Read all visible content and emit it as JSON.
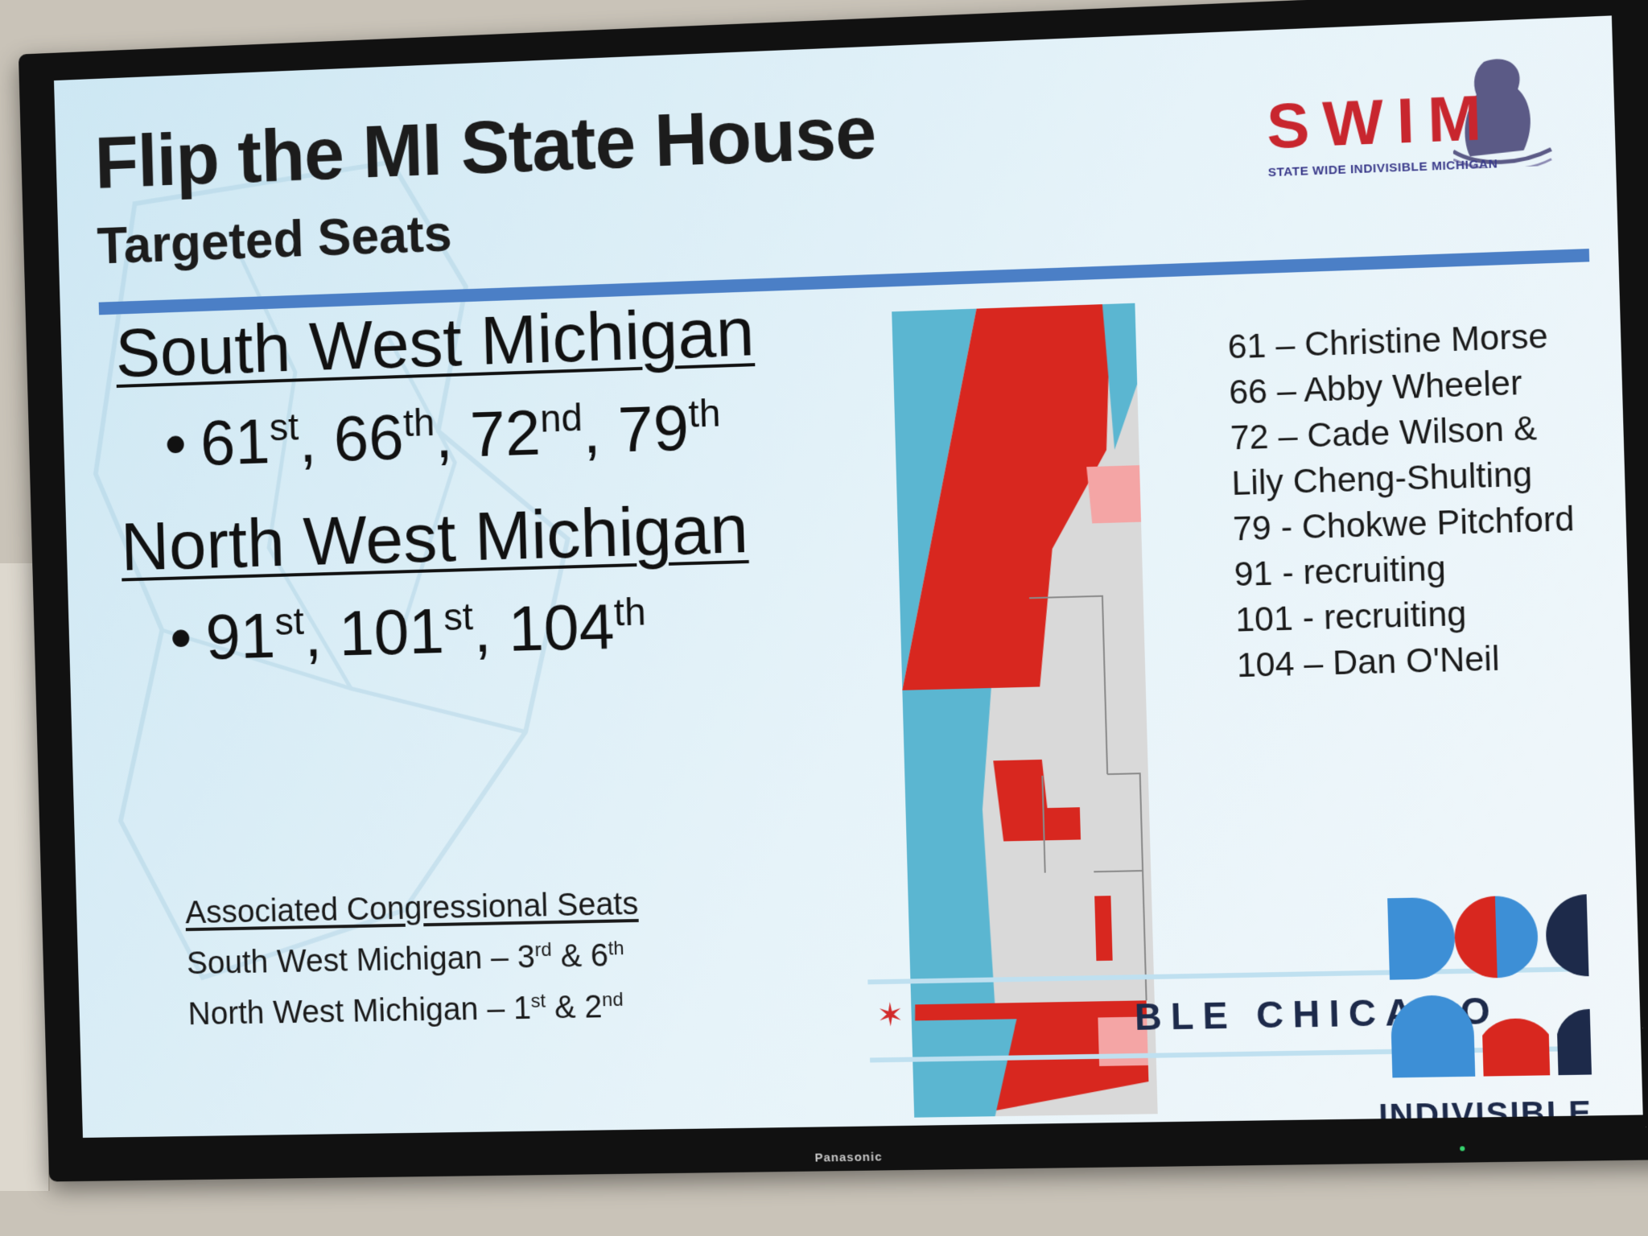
{
  "slide": {
    "title": "Flip the MI State House",
    "subtitle": "Targeted Seats"
  },
  "logo": {
    "word": "SWIM",
    "tagline": "STATE WIDE INDIVISIBLE MICHIGAN"
  },
  "regions": [
    {
      "name": "South West Michigan",
      "seats": [
        {
          "num": "61",
          "sup": "st"
        },
        {
          "num": "66",
          "sup": "th"
        },
        {
          "num": "72",
          "sup": "nd"
        },
        {
          "num": "79",
          "sup": "th"
        }
      ]
    },
    {
      "name": "North West Michigan",
      "seats": [
        {
          "num": "91",
          "sup": "st"
        },
        {
          "num": "101",
          "sup": "st"
        },
        {
          "num": "104",
          "sup": "th"
        }
      ]
    }
  ],
  "congress": {
    "heading": "Associated Congressional Seats",
    "rows": [
      {
        "region": "South West Michigan",
        "a": "3",
        "a_sup": "rd",
        "b": "6",
        "b_sup": "th"
      },
      {
        "region": "North West Michigan",
        "a": "1",
        "a_sup": "st",
        "b": "2",
        "b_sup": "nd"
      }
    ]
  },
  "candidates": [
    "61 – Christine Morse",
    "66 – Abby Wheeler",
    "72 – Cade Wilson &",
    "Lily Cheng-Shulting",
    "79 - Chokwe Pitchford",
    "91 - recruiting",
    "101 - recruiting",
    "104 – Dan O'Neil"
  ],
  "footer": {
    "chicago": "BLE CHICAGO",
    "indivisible": "INDIVISIBLE",
    "tv_brand": "Panasonic"
  },
  "colors": {
    "red_district": "#d8271f",
    "pink_district": "#f4a5a5",
    "water": "#5bb6d1",
    "neutral": "#d9d9d9",
    "accent_rule": "#4b7fc6",
    "swim_red": "#c8262e"
  }
}
